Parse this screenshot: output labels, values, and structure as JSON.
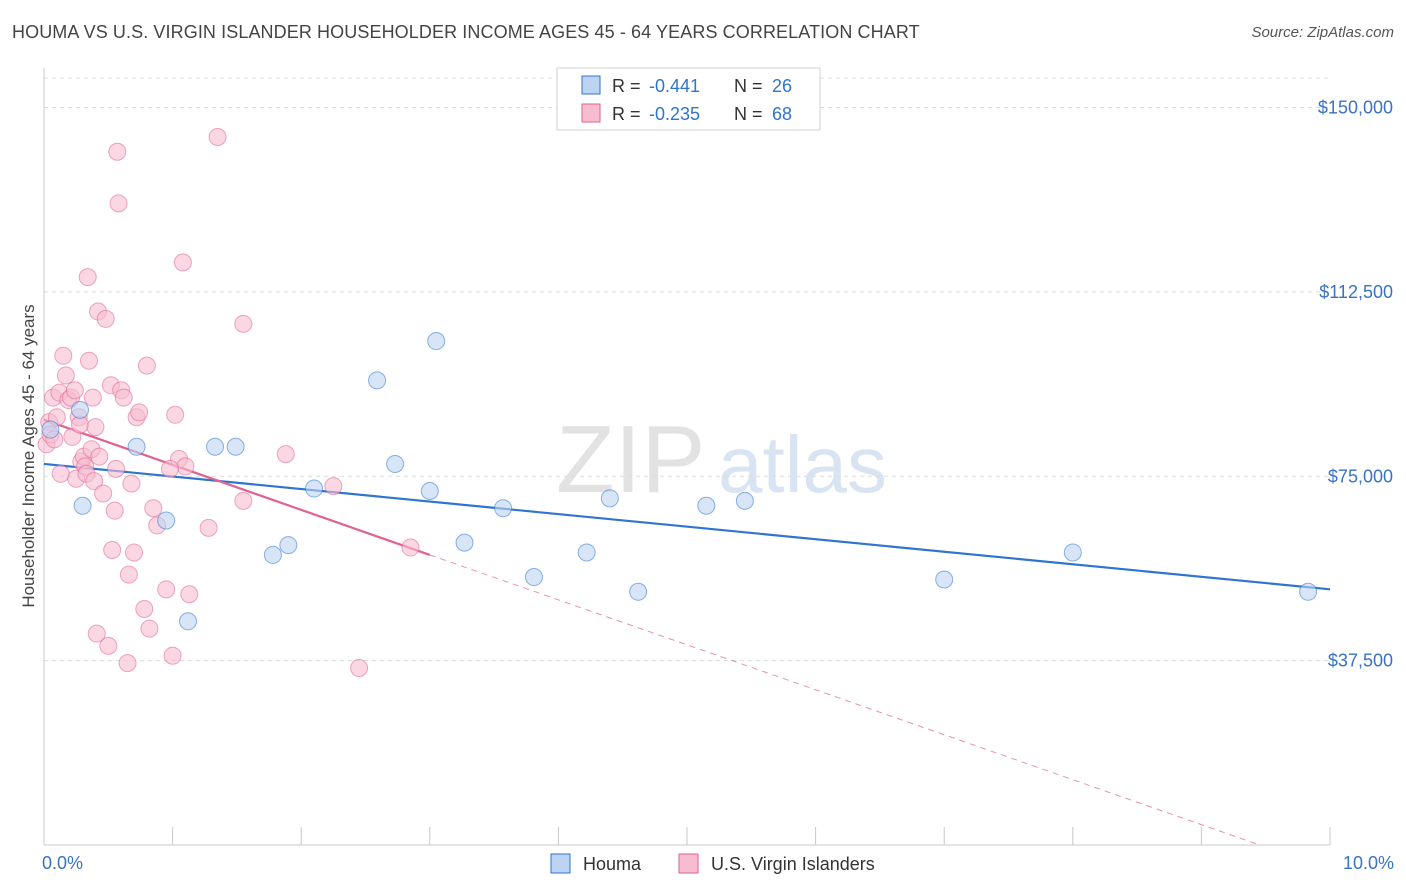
{
  "header": {
    "title": "HOUMA VS U.S. VIRGIN ISLANDER HOUSEHOLDER INCOME AGES 45 - 64 YEARS CORRELATION CHART",
    "source": "Source: ZipAtlas.com"
  },
  "watermark": {
    "zip": "ZIP",
    "atlas": "atlas"
  },
  "colors": {
    "blue": "#2f74d0",
    "blue_fill": "#bcd3f2",
    "pink": "#e0638f",
    "pink_fill": "#f7bcd0",
    "axis_label": "#3a72c4",
    "grid": "#dcdcdc"
  },
  "chart_data": {
    "type": "scatter",
    "title": "HOUMA VS U.S. VIRGIN ISLANDER HOUSEHOLDER INCOME AGES 45 - 64 YEARS CORRELATION CHART",
    "xlabel": "",
    "ylabel": "Householder Income Ages 45 - 64 years",
    "xlim": [
      0,
      10
    ],
    "ylim": [
      0,
      156000
    ],
    "x_tick_labels": {
      "left": "0.0%",
      "right": "10.0%"
    },
    "y_ticks": [
      {
        "value": 37500,
        "label": "$37,500"
      },
      {
        "value": 75000,
        "label": "$75,000"
      },
      {
        "value": 112500,
        "label": "$112,500"
      },
      {
        "value": 150000,
        "label": "$150,000"
      }
    ],
    "legend_stats": [
      {
        "r_label": "R =",
        "r": "-0.441",
        "n_label": "N =",
        "n": "26"
      },
      {
        "r_label": "R =",
        "r": "-0.235",
        "n_label": "N =",
        "n": "68"
      }
    ],
    "series": [
      {
        "name": "Houma",
        "trend": {
          "x0": 0.0,
          "y0": 77500,
          "x1": 10.0,
          "y1": 52000
        },
        "points": [
          [
            0.05,
            84500
          ],
          [
            0.28,
            88500
          ],
          [
            0.72,
            81000
          ],
          [
            0.3,
            69000
          ],
          [
            0.95,
            66000
          ],
          [
            1.12,
            45500
          ],
          [
            1.33,
            81000
          ],
          [
            1.49,
            81000
          ],
          [
            1.78,
            59000
          ],
          [
            1.9,
            61000
          ],
          [
            2.1,
            72500
          ],
          [
            2.59,
            94500
          ],
          [
            2.73,
            77500
          ],
          [
            3.05,
            102500
          ],
          [
            3.0,
            72000
          ],
          [
            3.27,
            61500
          ],
          [
            3.57,
            68500
          ],
          [
            3.81,
            54500
          ],
          [
            4.22,
            59500
          ],
          [
            4.4,
            70500
          ],
          [
            4.62,
            51500
          ],
          [
            5.15,
            69000
          ],
          [
            5.45,
            70000
          ],
          [
            7.0,
            54000
          ],
          [
            8.0,
            59500
          ],
          [
            9.83,
            51500
          ]
        ]
      },
      {
        "name": "U.S. Virgin Islanders",
        "trend": {
          "x0": 0.0,
          "y0": 86500,
          "x1": 3.0,
          "y1": 59000
        },
        "trend_extension": {
          "x0": 3.0,
          "y0": 59000,
          "x1": 10.0,
          "y1": -5000
        },
        "points": [
          [
            0.02,
            81500
          ],
          [
            0.04,
            86000
          ],
          [
            0.05,
            83500
          ],
          [
            0.07,
            91000
          ],
          [
            0.08,
            82500
          ],
          [
            0.1,
            87000
          ],
          [
            0.12,
            92000
          ],
          [
            0.13,
            75500
          ],
          [
            0.15,
            99500
          ],
          [
            0.17,
            95500
          ],
          [
            0.19,
            90500
          ],
          [
            0.21,
            91000
          ],
          [
            0.22,
            83000
          ],
          [
            0.24,
            92500
          ],
          [
            0.25,
            74500
          ],
          [
            0.27,
            87000
          ],
          [
            0.28,
            85500
          ],
          [
            0.29,
            78000
          ],
          [
            0.31,
            79000
          ],
          [
            0.32,
            77000
          ],
          [
            0.33,
            75500
          ],
          [
            0.34,
            115500
          ],
          [
            0.35,
            98500
          ],
          [
            0.37,
            80500
          ],
          [
            0.38,
            91000
          ],
          [
            0.39,
            74000
          ],
          [
            0.4,
            85000
          ],
          [
            0.41,
            43000
          ],
          [
            0.42,
            108500
          ],
          [
            0.43,
            79000
          ],
          [
            0.46,
            71500
          ],
          [
            0.48,
            107000
          ],
          [
            0.5,
            40500
          ],
          [
            0.52,
            93500
          ],
          [
            0.53,
            60000
          ],
          [
            0.55,
            68000
          ],
          [
            0.56,
            76500
          ],
          [
            0.57,
            141000
          ],
          [
            0.58,
            130500
          ],
          [
            0.6,
            92500
          ],
          [
            0.62,
            91000
          ],
          [
            0.65,
            37000
          ],
          [
            0.66,
            55000
          ],
          [
            0.68,
            73500
          ],
          [
            0.7,
            59500
          ],
          [
            0.72,
            87000
          ],
          [
            0.74,
            88000
          ],
          [
            0.78,
            48000
          ],
          [
            0.8,
            97500
          ],
          [
            0.82,
            44000
          ],
          [
            0.85,
            68500
          ],
          [
            0.88,
            65000
          ],
          [
            0.95,
            52000
          ],
          [
            1.0,
            38500
          ],
          [
            1.02,
            87500
          ],
          [
            1.05,
            78500
          ],
          [
            1.08,
            118500
          ],
          [
            1.1,
            77000
          ],
          [
            1.13,
            51000
          ],
          [
            1.28,
            64500
          ],
          [
            1.35,
            144000
          ],
          [
            1.55,
            106000
          ],
          [
            1.55,
            70000
          ],
          [
            1.88,
            79500
          ],
          [
            2.25,
            73000
          ],
          [
            2.45,
            36000
          ],
          [
            2.85,
            60500
          ],
          [
            0.98,
            76500
          ]
        ]
      }
    ]
  }
}
